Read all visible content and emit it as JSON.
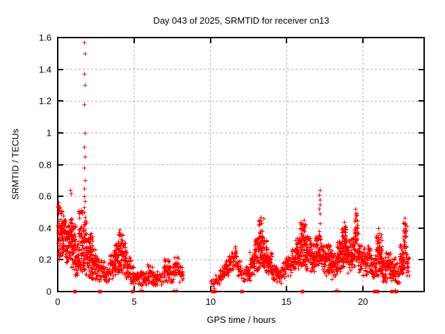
{
  "chart_data": {
    "type": "scatter",
    "title": "Day 043 of 2025, SRMTID for receiver cn13",
    "xlabel": "GPS time / hours",
    "ylabel": "SRMTID / TECUs",
    "xlim": [
      0,
      24
    ],
    "ylim": [
      0,
      1.6
    ],
    "xticks": [
      0,
      5,
      10,
      15,
      20
    ],
    "xtick_labels": [
      "0",
      "5",
      "10",
      "15",
      "20"
    ],
    "yticks": [
      0,
      0.2,
      0.4,
      0.6,
      0.8,
      1.0,
      1.2,
      1.4,
      1.6
    ],
    "ytick_labels": [
      "0",
      "0.2",
      "0.4",
      "0.6",
      "0.8",
      "1",
      "1.2",
      "1.4",
      "1.6"
    ],
    "grid": true,
    "legend": "none",
    "marker": "plus",
    "colors": {
      "points": "#ff0000",
      "grid": "#b0b0b0",
      "axis": "#000000",
      "background": "#ffffff"
    },
    "data_gaps": [
      [
        8.2,
        10.05
      ],
      [
        23.0,
        24.0
      ]
    ],
    "seed": 43,
    "density_bands": [
      [
        0.0,
        0.15,
        0.18,
        0.56
      ],
      [
        0.15,
        0.35,
        0.22,
        0.52
      ],
      [
        0.35,
        0.55,
        0.2,
        0.46
      ],
      [
        0.55,
        0.75,
        0.18,
        0.42
      ],
      [
        0.75,
        0.95,
        0.2,
        0.47
      ],
      [
        0.95,
        1.15,
        0.14,
        0.42
      ],
      [
        1.15,
        1.35,
        0.1,
        0.3
      ],
      [
        1.35,
        1.6,
        0.12,
        0.53
      ],
      [
        1.6,
        1.7,
        0.14,
        0.42
      ],
      [
        1.7,
        1.85,
        0.12,
        0.45
      ],
      [
        1.85,
        2.05,
        0.1,
        0.34
      ],
      [
        2.05,
        2.25,
        0.08,
        0.37
      ],
      [
        2.25,
        2.5,
        0.08,
        0.28
      ],
      [
        2.5,
        2.8,
        0.06,
        0.22
      ],
      [
        2.8,
        3.1,
        0.07,
        0.2
      ],
      [
        3.1,
        3.4,
        0.06,
        0.18
      ],
      [
        3.4,
        3.7,
        0.08,
        0.24
      ],
      [
        3.7,
        3.95,
        0.1,
        0.3
      ],
      [
        3.95,
        4.25,
        0.12,
        0.38
      ],
      [
        4.25,
        4.5,
        0.1,
        0.32
      ],
      [
        4.5,
        4.8,
        0.07,
        0.22
      ],
      [
        4.8,
        5.1,
        0.05,
        0.16
      ],
      [
        5.1,
        5.5,
        0.04,
        0.14
      ],
      [
        5.5,
        5.85,
        0.03,
        0.12
      ],
      [
        5.85,
        6.2,
        0.05,
        0.17
      ],
      [
        6.2,
        6.6,
        0.04,
        0.13
      ],
      [
        6.6,
        6.95,
        0.04,
        0.12
      ],
      [
        6.95,
        7.3,
        0.06,
        0.21
      ],
      [
        7.3,
        7.6,
        0.06,
        0.16
      ],
      [
        7.6,
        7.95,
        0.09,
        0.22
      ],
      [
        7.95,
        8.2,
        0.06,
        0.16
      ],
      [
        10.05,
        10.3,
        0.02,
        0.08
      ],
      [
        10.3,
        10.6,
        0.04,
        0.12
      ],
      [
        10.6,
        10.9,
        0.07,
        0.16
      ],
      [
        10.9,
        11.2,
        0.1,
        0.2
      ],
      [
        11.2,
        11.5,
        0.13,
        0.25
      ],
      [
        11.5,
        11.75,
        0.15,
        0.28
      ],
      [
        11.75,
        12.0,
        0.1,
        0.2
      ],
      [
        12.0,
        12.3,
        0.06,
        0.14
      ],
      [
        12.3,
        12.6,
        0.07,
        0.16
      ],
      [
        12.6,
        12.9,
        0.1,
        0.26
      ],
      [
        12.9,
        13.15,
        0.13,
        0.33
      ],
      [
        13.15,
        13.45,
        0.16,
        0.46
      ],
      [
        13.45,
        13.75,
        0.12,
        0.33
      ],
      [
        13.75,
        14.05,
        0.1,
        0.25
      ],
      [
        14.05,
        14.35,
        0.07,
        0.18
      ],
      [
        14.35,
        14.65,
        0.05,
        0.15
      ],
      [
        14.65,
        14.95,
        0.08,
        0.19
      ],
      [
        14.95,
        15.3,
        0.09,
        0.22
      ],
      [
        15.3,
        15.6,
        0.12,
        0.27
      ],
      [
        15.6,
        15.9,
        0.14,
        0.34
      ],
      [
        15.9,
        16.25,
        0.16,
        0.44
      ],
      [
        16.25,
        16.55,
        0.13,
        0.35
      ],
      [
        16.55,
        16.85,
        0.12,
        0.3
      ],
      [
        16.85,
        17.25,
        0.15,
        0.36
      ],
      [
        17.25,
        17.6,
        0.12,
        0.3
      ],
      [
        17.6,
        17.95,
        0.1,
        0.3
      ],
      [
        17.95,
        18.3,
        0.08,
        0.24
      ],
      [
        18.3,
        18.6,
        0.12,
        0.32
      ],
      [
        18.6,
        18.9,
        0.15,
        0.42
      ],
      [
        18.9,
        19.2,
        0.12,
        0.33
      ],
      [
        19.2,
        19.45,
        0.14,
        0.35
      ],
      [
        19.45,
        19.65,
        0.18,
        0.5
      ],
      [
        19.65,
        19.95,
        0.12,
        0.3
      ],
      [
        19.95,
        20.25,
        0.1,
        0.28
      ],
      [
        20.25,
        20.55,
        0.12,
        0.3
      ],
      [
        20.55,
        20.85,
        0.08,
        0.26
      ],
      [
        20.85,
        21.2,
        0.1,
        0.36
      ],
      [
        21.2,
        21.5,
        0.06,
        0.22
      ],
      [
        21.5,
        21.8,
        0.08,
        0.25
      ],
      [
        21.8,
        22.1,
        0.07,
        0.22
      ],
      [
        22.1,
        22.4,
        0.05,
        0.18
      ],
      [
        22.4,
        22.65,
        0.1,
        0.3
      ],
      [
        22.65,
        22.85,
        0.12,
        0.45
      ],
      [
        22.85,
        23.0,
        0.1,
        0.22
      ]
    ],
    "outlier_points": [
      [
        0.05,
        0.56
      ],
      [
        0.82,
        0.64
      ],
      [
        0.86,
        0.62
      ],
      [
        1.75,
        1.57
      ],
      [
        1.76,
        1.5
      ],
      [
        1.75,
        1.37
      ],
      [
        1.76,
        1.3
      ],
      [
        1.75,
        1.18
      ],
      [
        1.76,
        1.0
      ],
      [
        1.75,
        0.91
      ],
      [
        1.76,
        0.85
      ],
      [
        1.75,
        0.78
      ],
      [
        1.76,
        0.7
      ],
      [
        1.75,
        0.65
      ],
      [
        1.74,
        0.6
      ],
      [
        1.76,
        0.57
      ],
      [
        1.75,
        0.53
      ],
      [
        1.74,
        0.5
      ],
      [
        1.76,
        0.47
      ],
      [
        4.05,
        0.39
      ],
      [
        11.6,
        0.285
      ],
      [
        13.3,
        0.47
      ],
      [
        16.1,
        0.45
      ],
      [
        17.15,
        0.64
      ],
      [
        17.14,
        0.61
      ],
      [
        17.16,
        0.58
      ],
      [
        17.15,
        0.55
      ],
      [
        17.14,
        0.52
      ],
      [
        17.16,
        0.49
      ],
      [
        17.15,
        0.43
      ],
      [
        17.14,
        0.38
      ],
      [
        18.75,
        0.44
      ],
      [
        19.5,
        0.52
      ],
      [
        19.51,
        0.49
      ],
      [
        19.49,
        0.46
      ],
      [
        21.0,
        0.4
      ],
      [
        21.02,
        0.37
      ],
      [
        22.72,
        0.465
      ],
      [
        22.7,
        0.43
      ],
      [
        22.74,
        0.4
      ]
    ],
    "zero_line_squares": [
      1.14,
      2.8,
      4.93,
      10.15,
      10.27,
      12.05,
      16.02,
      20.75,
      20.95,
      21.9,
      22.2
    ],
    "zero_line_plus_marks": [
      5.42,
      5.52,
      7.62,
      7.72,
      18.22,
      18.32,
      22.1
    ]
  }
}
